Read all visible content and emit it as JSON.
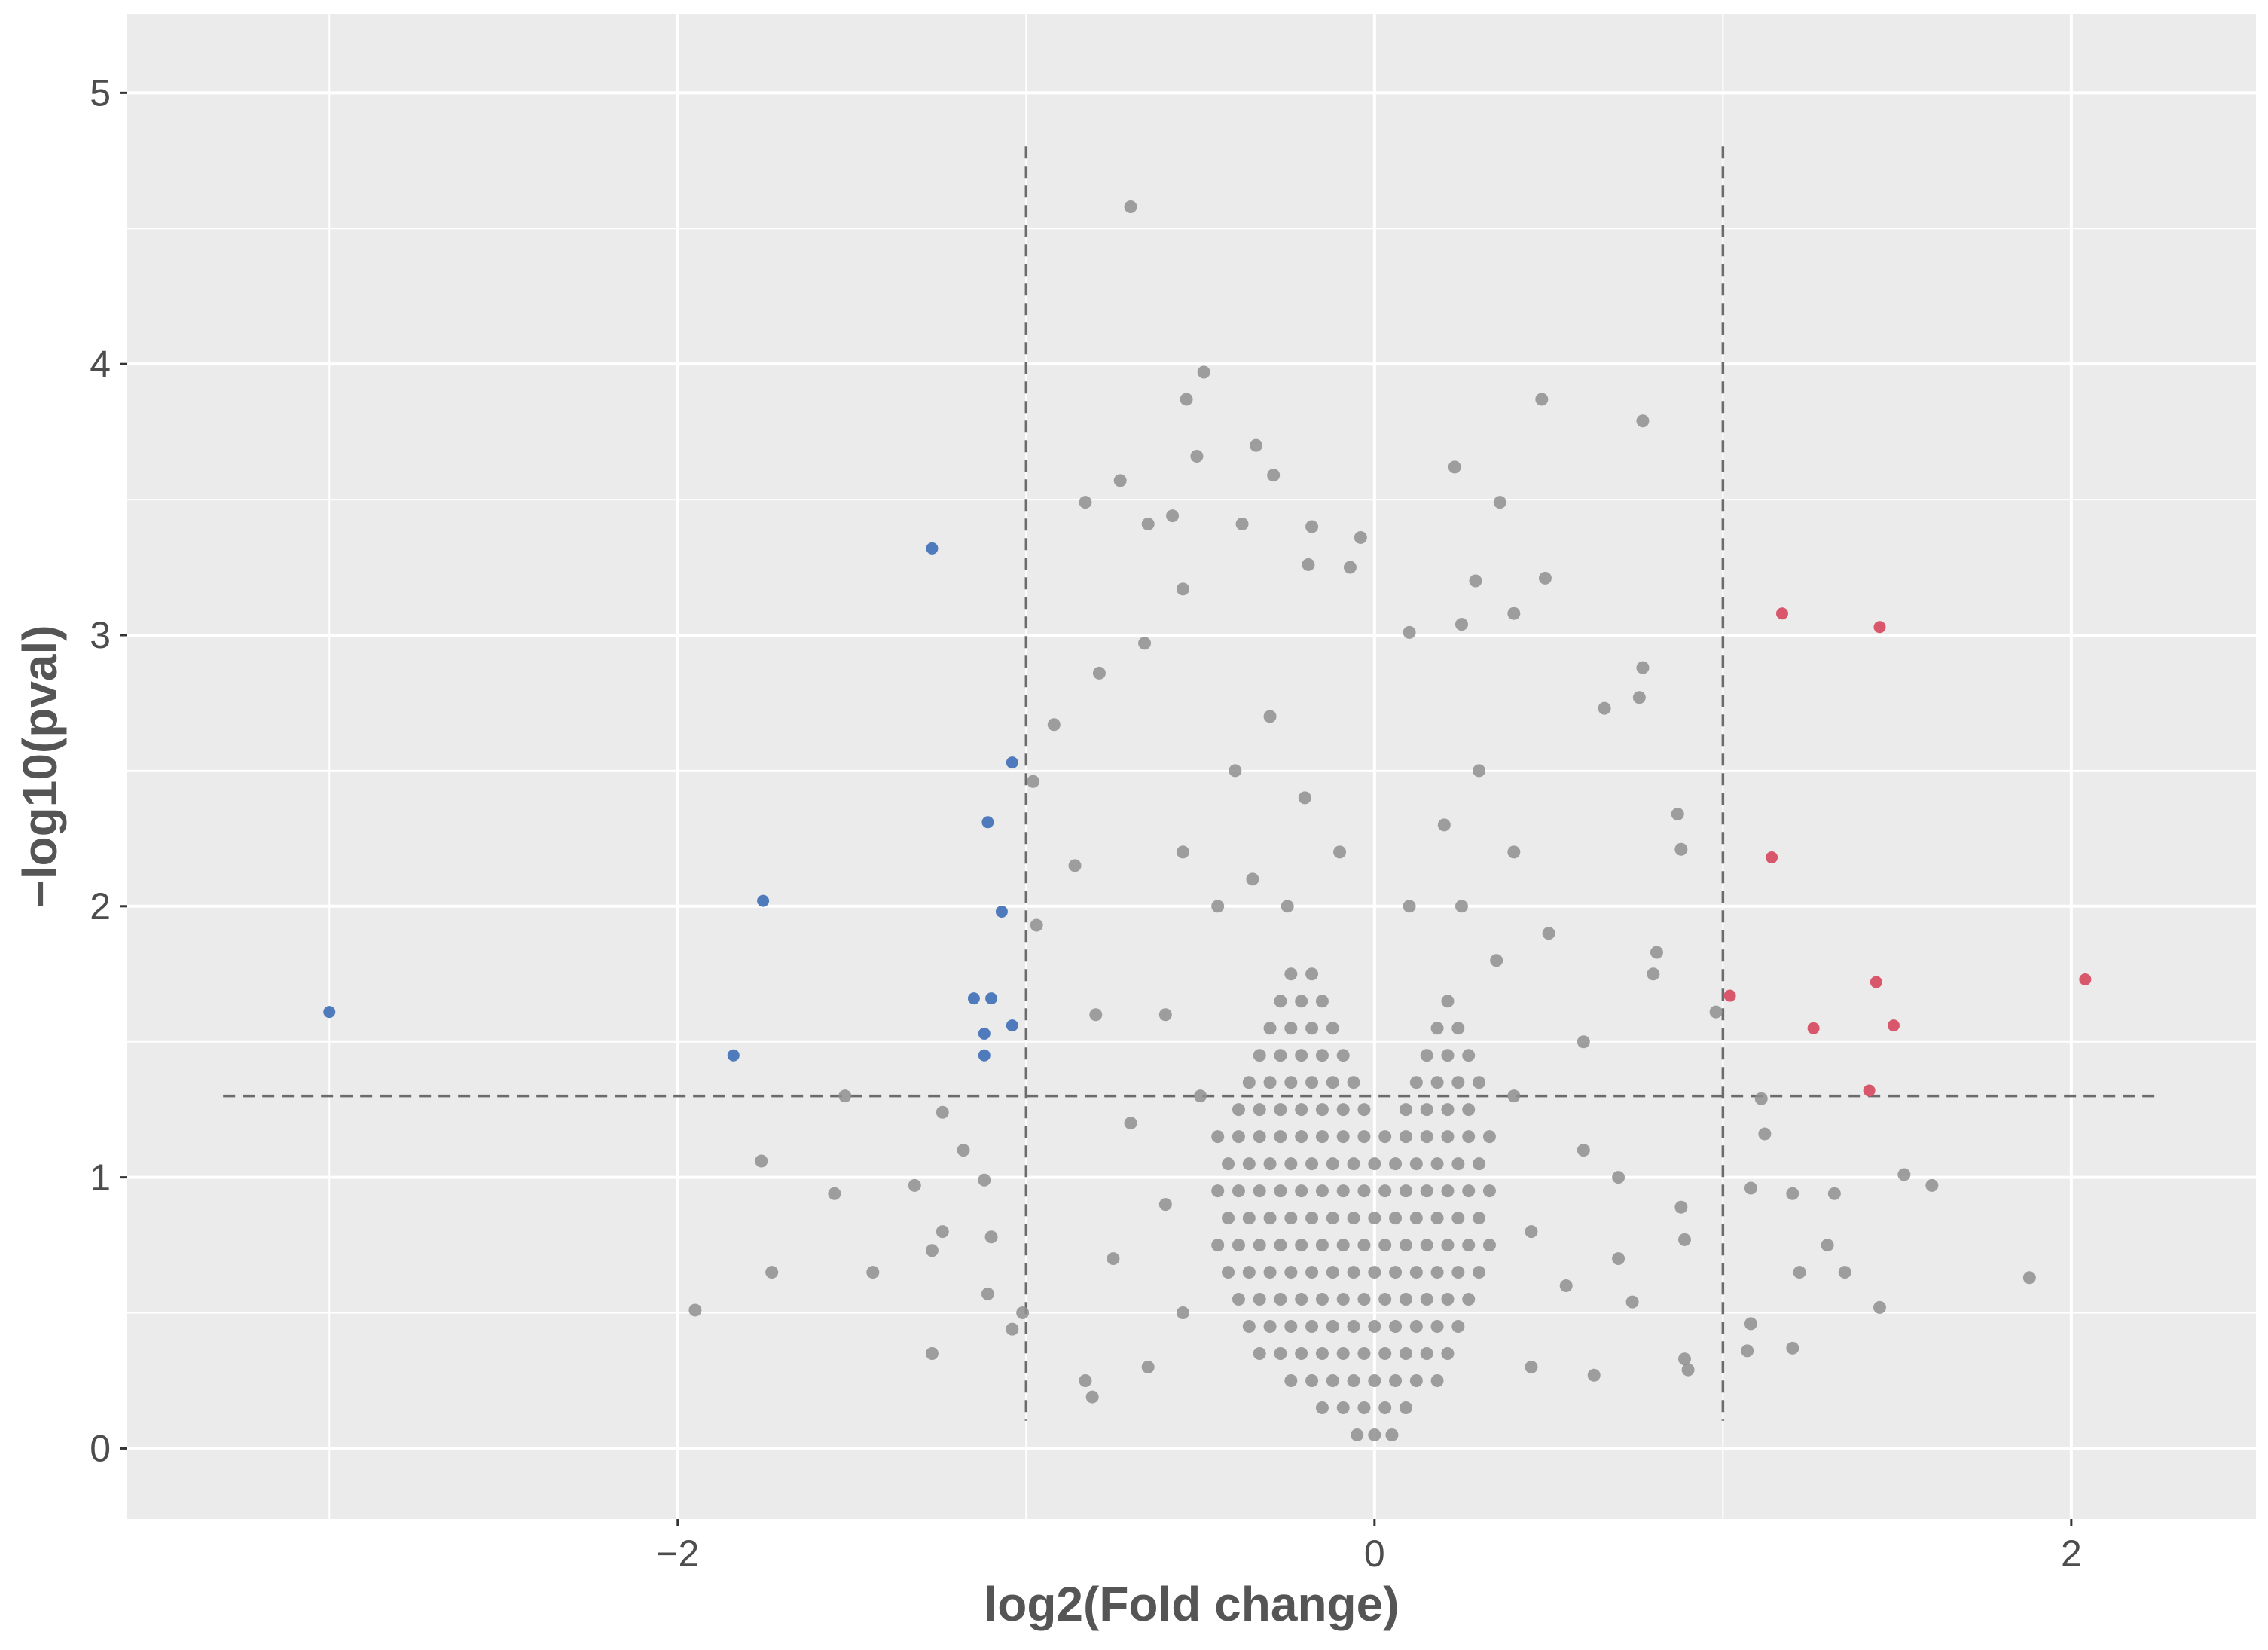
{
  "chart_data": {
    "type": "scatter",
    "x_label": "log2(Fold change)",
    "y_label": "−log10(pval)",
    "xlim": [
      -3.58,
      2.53
    ],
    "ylim": [
      -0.26,
      5.29
    ],
    "xticks": [
      {
        "value": -2,
        "label": "−2"
      },
      0,
      2
    ],
    "yticks": [
      0,
      1,
      2,
      3,
      4,
      5
    ],
    "xminor": [
      -3,
      -1,
      1
    ],
    "yminor": [
      0.5,
      1.5,
      2.5,
      3.5,
      4.5
    ],
    "grid": true,
    "vlines": [
      -1,
      1
    ],
    "hline": 1.3,
    "series": [
      {
        "color": "#8f8f8f",
        "x": [
          -0.7,
          -0.49,
          -0.54,
          0.48,
          0.77,
          -0.34,
          -0.51,
          -0.73,
          0.23,
          -0.29,
          -0.83,
          0.36,
          -0.58,
          -0.38,
          -0.18,
          -0.04,
          -0.65,
          -0.19,
          0.49,
          0.29,
          -0.07,
          -0.55,
          0.4,
          0.1,
          0.25,
          -0.66,
          -0.79,
          0.77,
          0.76,
          0.66,
          -0.92,
          -0.98,
          0.87,
          0.88,
          -0.86,
          -0.97,
          0.81,
          0.8,
          0.98,
          -1.52,
          -1.24,
          -1.76,
          -1.55,
          -1.32,
          -1.18,
          -1.12,
          -1.24,
          -1.27,
          -1.1,
          -1.73,
          -1.44,
          -1.95,
          -1.11,
          -1.01,
          -1.27,
          -1.04,
          1.52,
          1.6,
          1.32,
          1.2,
          1.08,
          1.12,
          1.3,
          1.22,
          1.35,
          1.88,
          1.45,
          1.08,
          1.2,
          1.07,
          0.89,
          0.9,
          0.63,
          -0.83,
          -0.81,
          1.11,
          0.88,
          0.89,
          0.7,
          0.74,
          -0.6,
          -0.55,
          -0.4,
          -0.3,
          -0.2,
          -0.1,
          0.1,
          0.2,
          0.3,
          0.4,
          0.5,
          0.6,
          -0.7,
          -0.6,
          -0.55,
          0.45,
          0.55,
          0.4,
          -0.5,
          -0.45,
          0.35,
          -0.35,
          0.25,
          -0.25,
          -0.65,
          0.45,
          0.6,
          -0.75,
          0.7,
          -0.8,
          -0.05,
          0,
          0.05,
          -0.15,
          -0.09,
          -0.03,
          0.03,
          0.09,
          -0.24,
          -0.18,
          -0.12,
          -0.06,
          0,
          0.06,
          0.12,
          0.18,
          -0.33,
          -0.27,
          -0.21,
          -0.15,
          -0.09,
          -0.03,
          0.03,
          0.09,
          0.15,
          0.21,
          -0.36,
          -0.3,
          -0.24,
          -0.18,
          -0.12,
          -0.06,
          0,
          0.06,
          0.12,
          0.18,
          0.24,
          -0.39,
          -0.33,
          -0.27,
          -0.21,
          -0.15,
          -0.09,
          -0.03,
          0.03,
          0.09,
          0.15,
          0.21,
          0.27,
          -0.42,
          -0.36,
          -0.3,
          -0.24,
          -0.18,
          -0.12,
          -0.06,
          0,
          0.06,
          0.12,
          0.18,
          0.24,
          0.3,
          -0.45,
          -0.39,
          -0.33,
          -0.27,
          -0.21,
          -0.15,
          -0.09,
          -0.03,
          0.03,
          0.09,
          0.15,
          0.21,
          0.27,
          0.33,
          -0.42,
          -0.36,
          -0.3,
          -0.24,
          -0.18,
          -0.12,
          -0.06,
          0,
          0.06,
          0.12,
          0.18,
          0.24,
          0.3,
          -0.45,
          -0.39,
          -0.33,
          -0.27,
          -0.21,
          -0.15,
          -0.09,
          -0.03,
          0.03,
          0.09,
          0.15,
          0.21,
          0.27,
          0.33,
          -0.42,
          -0.36,
          -0.3,
          -0.24,
          -0.18,
          -0.12,
          -0.06,
          0,
          0.06,
          0.12,
          0.18,
          0.24,
          0.3,
          -0.45,
          -0.39,
          -0.33,
          -0.27,
          -0.21,
          -0.15,
          -0.09,
          -0.03,
          0.03,
          0.09,
          0.15,
          0.21,
          0.27,
          0.33,
          -0.39,
          -0.33,
          -0.27,
          -0.21,
          -0.15,
          -0.09,
          -0.03,
          0.09,
          0.15,
          0.21,
          0.27,
          -0.36,
          -0.3,
          -0.24,
          -0.18,
          -0.12,
          -0.06,
          0.12,
          0.18,
          0.24,
          0.3,
          -0.33,
          -0.27,
          -0.21,
          -0.15,
          -0.09,
          0.15,
          0.21,
          0.27,
          -0.3,
          -0.24,
          -0.18,
          -0.12,
          0.18,
          0.24,
          -0.27,
          -0.21,
          -0.15,
          0.21,
          -0.24,
          -0.18
        ],
        "values": [
          4.58,
          3.97,
          3.87,
          3.87,
          3.79,
          3.7,
          3.66,
          3.57,
          3.62,
          3.59,
          3.49,
          3.49,
          3.44,
          3.41,
          3.4,
          3.36,
          3.41,
          3.26,
          3.21,
          3.2,
          3.25,
          3.17,
          3.08,
          3.01,
          3.04,
          2.97,
          2.86,
          2.88,
          2.77,
          2.73,
          2.67,
          2.46,
          2.34,
          2.21,
          2.15,
          1.93,
          1.83,
          1.75,
          1.61,
          1.3,
          1.24,
          1.06,
          0.94,
          0.97,
          1.1,
          0.99,
          0.8,
          0.73,
          0.78,
          0.65,
          0.65,
          0.51,
          0.57,
          0.5,
          0.35,
          0.44,
          1.01,
          0.97,
          0.94,
          0.94,
          0.96,
          1.16,
          0.75,
          0.65,
          0.65,
          0.63,
          0.52,
          0.46,
          0.37,
          0.36,
          0.33,
          0.29,
          0.27,
          0.25,
          0.19,
          1.29,
          0.89,
          0.77,
          0.7,
          0.54,
          1.6,
          2.2,
          2.5,
          2.7,
          2.4,
          2.2,
          2.0,
          2.3,
          2.5,
          2.2,
          1.9,
          1.5,
          1.2,
          0.9,
          0.5,
          0.8,
          0.6,
          1.3,
          1.3,
          2.0,
          1.8,
          2.1,
          2.0,
          2.0,
          0.3,
          0.3,
          1.1,
          0.7,
          1.0,
          1.6,
          0.05,
          0.05,
          0.05,
          0.15,
          0.15,
          0.15,
          0.15,
          0.15,
          0.25,
          0.25,
          0.25,
          0.25,
          0.25,
          0.25,
          0.25,
          0.25,
          0.35,
          0.35,
          0.35,
          0.35,
          0.35,
          0.35,
          0.35,
          0.35,
          0.35,
          0.35,
          0.45,
          0.45,
          0.45,
          0.45,
          0.45,
          0.45,
          0.45,
          0.45,
          0.45,
          0.45,
          0.45,
          0.55,
          0.55,
          0.55,
          0.55,
          0.55,
          0.55,
          0.55,
          0.55,
          0.55,
          0.55,
          0.55,
          0.55,
          0.65,
          0.65,
          0.65,
          0.65,
          0.65,
          0.65,
          0.65,
          0.65,
          0.65,
          0.65,
          0.65,
          0.65,
          0.65,
          0.75,
          0.75,
          0.75,
          0.75,
          0.75,
          0.75,
          0.75,
          0.75,
          0.75,
          0.75,
          0.75,
          0.75,
          0.75,
          0.75,
          0.85,
          0.85,
          0.85,
          0.85,
          0.85,
          0.85,
          0.85,
          0.85,
          0.85,
          0.85,
          0.85,
          0.85,
          0.85,
          0.95,
          0.95,
          0.95,
          0.95,
          0.95,
          0.95,
          0.95,
          0.95,
          0.95,
          0.95,
          0.95,
          0.95,
          0.95,
          0.95,
          1.05,
          1.05,
          1.05,
          1.05,
          1.05,
          1.05,
          1.05,
          1.05,
          1.05,
          1.05,
          1.05,
          1.05,
          1.05,
          1.15,
          1.15,
          1.15,
          1.15,
          1.15,
          1.15,
          1.15,
          1.15,
          1.15,
          1.15,
          1.15,
          1.15,
          1.15,
          1.15,
          1.25,
          1.25,
          1.25,
          1.25,
          1.25,
          1.25,
          1.25,
          1.25,
          1.25,
          1.25,
          1.25,
          1.35,
          1.35,
          1.35,
          1.35,
          1.35,
          1.35,
          1.35,
          1.35,
          1.35,
          1.35,
          1.45,
          1.45,
          1.45,
          1.45,
          1.45,
          1.45,
          1.45,
          1.45,
          1.55,
          1.55,
          1.55,
          1.55,
          1.55,
          1.55,
          1.65,
          1.65,
          1.65,
          1.65,
          1.75,
          1.75
        ]
      },
      {
        "color": "#4f7bbd",
        "x": [
          -3.0,
          -1.755,
          -1.84,
          -1.27,
          -1.04,
          -1.11,
          -1.07,
          -1.15,
          -1.1,
          -1.12,
          -1.12,
          -1.04
        ],
        "values": [
          1.61,
          2.02,
          1.45,
          3.32,
          2.53,
          2.31,
          1.98,
          1.66,
          1.66,
          1.53,
          1.45,
          1.56
        ]
      },
      {
        "color": "#d9576b",
        "x": [
          1.17,
          1.45,
          1.14,
          1.02,
          1.26,
          1.44,
          1.49,
          2.04,
          1.42
        ],
        "values": [
          3.08,
          3.03,
          2.18,
          1.67,
          1.55,
          1.72,
          1.56,
          1.73,
          1.32
        ]
      }
    ]
  }
}
